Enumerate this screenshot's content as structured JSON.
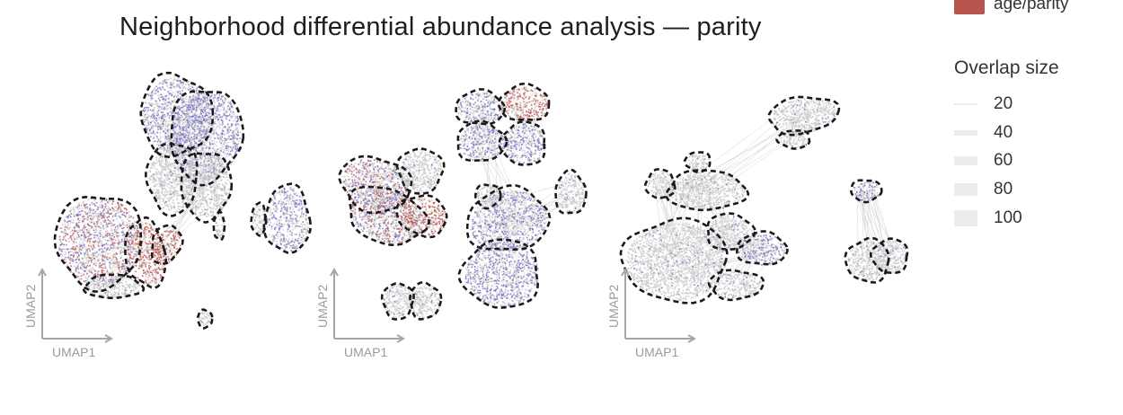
{
  "title": "Neighborhood differential abundance analysis — parity",
  "color_legend": {
    "label": "age/parity",
    "color": "#b5554e"
  },
  "size_legend": {
    "title": "Overlap size",
    "values": [
      20,
      40,
      60,
      80,
      100
    ]
  },
  "panels": [
    {
      "xlabel": "UMAP1",
      "ylabel": "UMAP2"
    },
    {
      "xlabel": "UMAP1",
      "ylabel": "UMAP2"
    },
    {
      "xlabel": "UMAP1",
      "ylabel": "UMAP2"
    }
  ],
  "colors": {
    "neutral": "#c9c9c9",
    "depleted": "#7a74c4",
    "enriched": "#c4524a",
    "boundary": "#1a1a1a"
  },
  "chart_data": {
    "type": "scatter",
    "title": "Neighborhood differential abundance analysis — parity",
    "xlabel": "UMAP1",
    "ylabel": "UMAP2",
    "legend": [
      "age/parity"
    ],
    "size_legend_values": [
      20,
      40,
      60,
      80,
      100
    ],
    "panel_count": 3
  }
}
